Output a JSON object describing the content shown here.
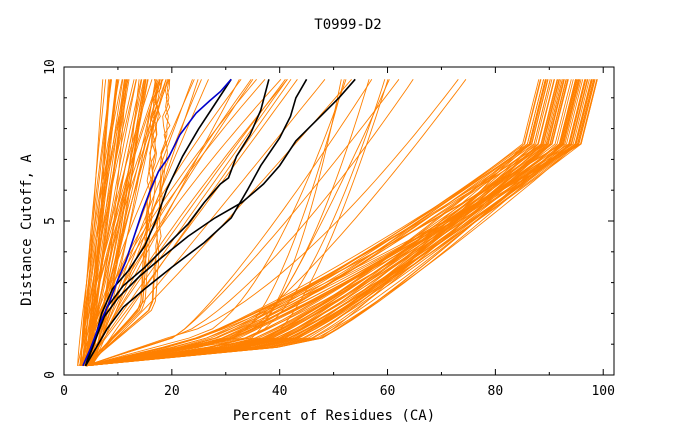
{
  "chart_data": {
    "type": "line",
    "title": "T0999-D2",
    "xlabel": "Percent of Residues (CA)",
    "ylabel": "Distance Cutoff, A",
    "xlim": [
      0,
      102
    ],
    "ylim": [
      0,
      10
    ],
    "x_ticks": [
      0,
      20,
      40,
      60,
      80,
      100
    ],
    "x_tick_labels": [
      "0",
      "20",
      "40",
      "60",
      "80",
      "100"
    ],
    "y_ticks": [
      0,
      5,
      10
    ],
    "y_tick_labels": [
      "0",
      "5",
      "10"
    ],
    "grid": false,
    "legend": "none",
    "colors": {
      "orange": "#ff8000",
      "black": "#000000",
      "blue": "#0000cc"
    },
    "series": [
      {
        "color": "#000000",
        "points": [
          [
            4,
            0.3
          ],
          [
            5,
            0.9
          ],
          [
            6.5,
            1.5
          ],
          [
            8,
            2.2
          ],
          [
            11,
            2.9
          ],
          [
            15,
            3.5
          ],
          [
            19,
            4.2
          ],
          [
            23,
            4.9
          ],
          [
            26,
            5.6
          ],
          [
            29,
            6.2
          ],
          [
            30.5,
            6.4
          ],
          [
            32,
            7.1
          ],
          [
            34.5,
            7.8
          ],
          [
            36.5,
            8.6
          ],
          [
            38,
            9.6
          ]
        ]
      },
      {
        "color": "#000000",
        "points": [
          [
            4,
            0.3
          ],
          [
            5.5,
            1
          ],
          [
            7,
            2
          ],
          [
            9,
            2.8
          ],
          [
            12,
            3.4
          ],
          [
            15,
            4.2
          ],
          [
            17,
            5
          ],
          [
            19,
            6
          ],
          [
            22,
            7.1
          ],
          [
            25,
            8
          ],
          [
            28,
            8.8
          ],
          [
            31,
            9.6
          ]
        ]
      },
      {
        "color": "#000000",
        "points": [
          [
            4,
            0.3
          ],
          [
            6,
            0.9
          ],
          [
            8,
            1.5
          ],
          [
            11,
            2.2
          ],
          [
            15,
            2.8
          ],
          [
            20,
            3.5
          ],
          [
            26,
            4.3
          ],
          [
            31,
            5.1
          ],
          [
            34,
            6
          ],
          [
            36.5,
            6.8
          ],
          [
            40,
            7.7
          ],
          [
            42,
            8.4
          ],
          [
            43,
            9
          ],
          [
            45,
            9.6
          ]
        ]
      },
      {
        "color": "#000000",
        "points": [
          [
            4,
            0.3
          ],
          [
            5.5,
            1
          ],
          [
            7.5,
            1.9
          ],
          [
            10,
            2.5
          ],
          [
            14,
            3.2
          ],
          [
            18,
            3.8
          ],
          [
            23,
            4.5
          ],
          [
            28,
            5.1
          ],
          [
            33,
            5.6
          ],
          [
            37,
            6.2
          ],
          [
            40,
            6.8
          ],
          [
            43,
            7.6
          ],
          [
            47,
            8.3
          ],
          [
            51,
            9
          ],
          [
            54,
            9.6
          ]
        ]
      },
      {
        "color": "#0000cc",
        "points": [
          [
            3.5,
            0.3
          ],
          [
            5,
            0.9
          ],
          [
            6.5,
            1.6
          ],
          [
            8.5,
            2.4
          ],
          [
            10,
            3.1
          ],
          [
            11.5,
            3.7
          ],
          [
            13,
            4.5
          ],
          [
            14.5,
            5.3
          ],
          [
            16,
            6
          ],
          [
            17.5,
            6.6
          ],
          [
            19.5,
            7.1
          ],
          [
            21.5,
            7.8
          ],
          [
            24.5,
            8.5
          ],
          [
            27,
            8.9
          ],
          [
            29,
            9.2
          ],
          [
            31,
            9.6
          ]
        ]
      }
    ]
  }
}
